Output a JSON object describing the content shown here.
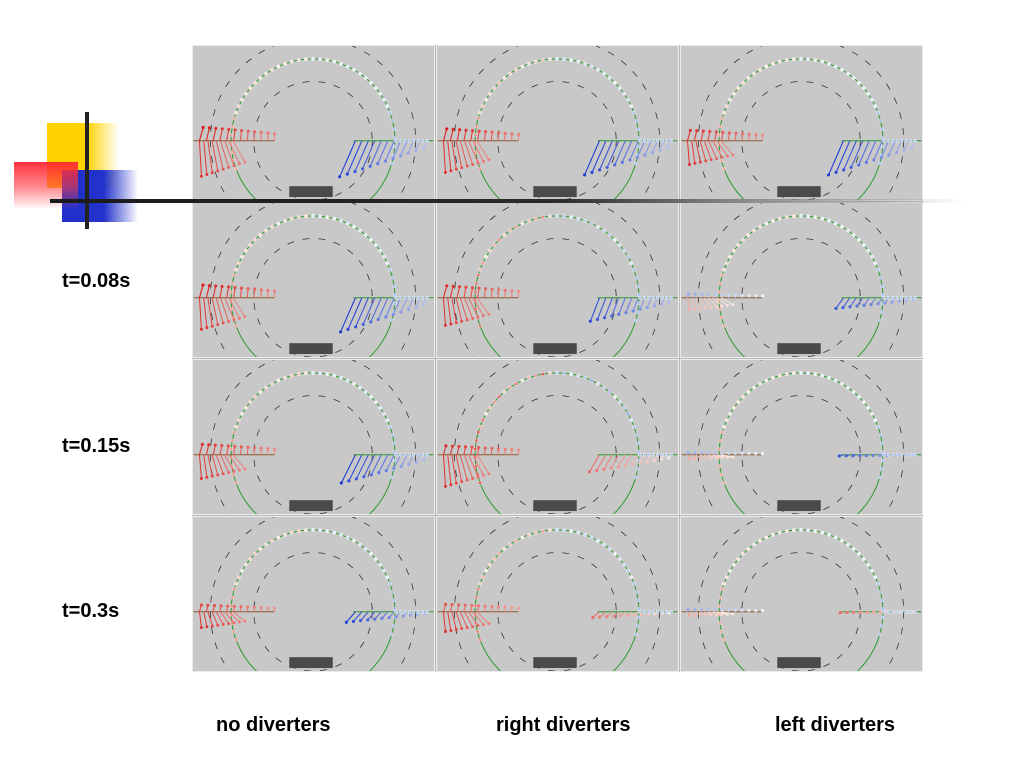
{
  "rows": [
    {
      "label": ""
    },
    {
      "label": "t=0.08s"
    },
    {
      "label": "t=0.15s"
    },
    {
      "label": "t=0.3s"
    }
  ],
  "columns": [
    {
      "label": "no diverters"
    },
    {
      "label": "right diverters"
    },
    {
      "label": "left diverters"
    }
  ],
  "colors": {
    "panel_bg": "#c8c8c8",
    "wall_circle": "#2a9a2a",
    "dashed_circle": "#333333",
    "wall_block": "#4a4a4a",
    "vector_warm": "#e02020",
    "vector_cool": "#2040d0",
    "logo_yellow": "#ffd200",
    "logo_red": "#ff3040",
    "logo_blue": "#2233cc"
  },
  "panels": [
    [
      {
        "left_len": 0.9,
        "right_len": 0.95,
        "left_tilt": 0.9,
        "right_tilt": 0.8,
        "ring": 0.1,
        "left_mix": 0.0,
        "right_mix": 0.0
      },
      {
        "left_len": 0.8,
        "right_len": 0.9,
        "left_tilt": 0.8,
        "right_tilt": 0.8,
        "ring": 0.25,
        "left_mix": 0.0,
        "right_mix": 0.0
      },
      {
        "left_len": 0.7,
        "right_len": 0.9,
        "left_tilt": 0.6,
        "right_tilt": 0.8,
        "ring": 0.1,
        "left_mix": 0.1,
        "right_mix": 0.0
      }
    ],
    [
      {
        "left_len": 0.85,
        "right_len": 0.9,
        "left_tilt": 0.8,
        "right_tilt": 0.8,
        "ring": 0.15,
        "left_mix": 0.0,
        "right_mix": 0.0
      },
      {
        "left_len": 0.8,
        "right_len": 0.55,
        "left_tilt": 0.7,
        "right_tilt": 0.9,
        "ring": 0.55,
        "left_mix": 0.1,
        "right_mix": 0.3
      },
      {
        "left_len": 0.25,
        "right_len": 0.45,
        "left_tilt": 0.3,
        "right_tilt": 0.5,
        "ring": 0.1,
        "left_mix": 0.6,
        "right_mix": 0.5
      }
    ],
    [
      {
        "left_len": 0.7,
        "right_len": 0.85,
        "left_tilt": 0.6,
        "right_tilt": 0.7,
        "ring": 0.2,
        "left_mix": 0.1,
        "right_mix": 0.0
      },
      {
        "left_len": 0.6,
        "right_len": 0.6,
        "left_tilt": 0.8,
        "right_tilt": 0.6,
        "ring": 0.8,
        "left_mix": 0.1,
        "right_mix": 0.6
      },
      {
        "left_len": 0.15,
        "right_len": 0.25,
        "left_tilt": 0.1,
        "right_tilt": 0.1,
        "ring": 0.05,
        "left_mix": 0.9,
        "right_mix": 0.5
      }
    ],
    [
      {
        "left_len": 0.45,
        "right_len": 0.55,
        "left_tilt": 0.4,
        "right_tilt": 0.4,
        "ring": 0.2,
        "left_mix": 0.2,
        "right_mix": 0.1
      },
      {
        "left_len": 0.5,
        "right_len": 0.4,
        "left_tilt": 0.5,
        "right_tilt": 0.3,
        "ring": 0.4,
        "left_mix": 0.3,
        "right_mix": 0.7
      },
      {
        "left_len": 0.15,
        "right_len": 0.2,
        "left_tilt": 0.1,
        "right_tilt": 0.1,
        "ring": 0.05,
        "left_mix": 0.9,
        "right_mix": 0.6
      }
    ]
  ]
}
